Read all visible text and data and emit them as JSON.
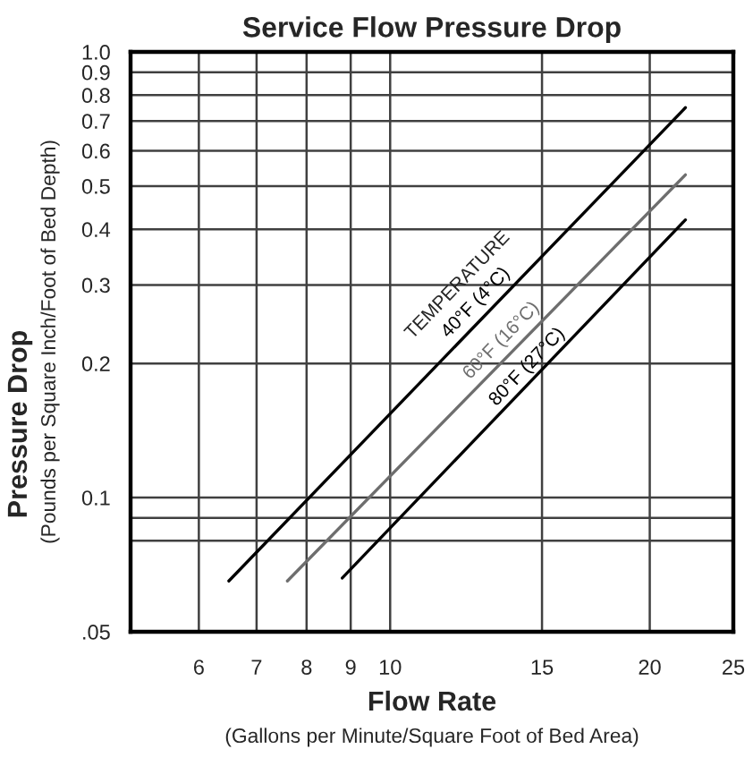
{
  "chart_data": {
    "type": "line",
    "title": "Service Flow Pressure Drop",
    "xlabel": "Flow Rate\n(Gallons per Minute/Square Foot of Bed Area)",
    "ylabel": "Pressure Drop\n(Pounds per Square Inch/Foot of Bed Depth)",
    "log": "xy",
    "xlim": [
      5,
      25
    ],
    "xticks": [
      6,
      7,
      8,
      9,
      10,
      15,
      20,
      25
    ],
    "ylim": [
      0.05,
      1.0
    ],
    "yticks": [
      {
        "value": 0.05,
        "label": ".05"
      },
      {
        "value": 0.08,
        "label": null
      },
      {
        "value": 0.09,
        "label": null
      },
      0.1,
      0.2,
      0.3,
      0.4,
      0.5,
      0.6,
      0.7,
      0.8,
      0.9,
      {
        "value": 1.0,
        "label": "1.0"
      }
    ],
    "grid": true,
    "annotations": [
      "TEMPERATURE"
    ],
    "series": [
      {
        "name": "40°F (4°C)",
        "color": "#000000",
        "x": [
          6.5,
          22
        ],
        "values": [
          0.065,
          0.75
        ]
      },
      {
        "name": "60°F (16°C)",
        "color": "#6e6e6e",
        "x": [
          7.6,
          22
        ],
        "values": [
          0.065,
          0.53
        ]
      },
      {
        "name": "80°F (27°C)",
        "color": "#000000",
        "x": [
          8.8,
          22
        ],
        "values": [
          0.066,
          0.42
        ]
      }
    ]
  }
}
